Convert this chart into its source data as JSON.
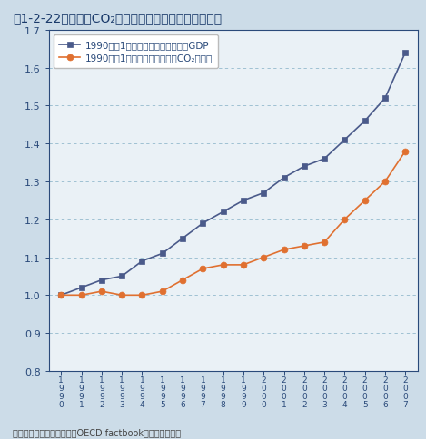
{
  "years": [
    1990,
    1991,
    1992,
    1993,
    1994,
    1995,
    1996,
    1997,
    1998,
    1999,
    2000,
    2001,
    2002,
    2003,
    2004,
    2005,
    2006,
    2007
  ],
  "gdp_vals": [
    1.0,
    1.02,
    1.04,
    1.05,
    1.09,
    1.11,
    1.15,
    1.19,
    1.22,
    1.25,
    1.27,
    1.31,
    1.34,
    1.36,
    1.41,
    1.46,
    1.52,
    1.64
  ],
  "co2_vals": [
    1.0,
    1.0,
    1.01,
    1.0,
    1.0,
    1.01,
    1.04,
    1.07,
    1.08,
    1.08,
    1.1,
    1.12,
    1.13,
    1.14,
    1.2,
    1.25,
    1.3,
    1.38
  ],
  "title": "囱1-2-22　経済とCO₂排出量の相対的デカップリング",
  "legend_gdp": "1990年を1としたときの各年の実質GDP",
  "legend_co2": "1990年を1としたときの各年のCO₂排出量",
  "source": "資料：国連統計部資料及びOECD factbookより環境省作成",
  "ylim": [
    0.8,
    1.7
  ],
  "yticks": [
    0.8,
    0.9,
    1.0,
    1.1,
    1.2,
    1.3,
    1.4,
    1.5,
    1.6,
    1.7
  ],
  "gdp_color": "#4a5a8a",
  "co2_color": "#e07030",
  "fig_bg_color": "#ccdce8",
  "plot_bg_color": "#eaf1f6",
  "grid_color": "#8ab4c8",
  "title_color": "#1a3a6a",
  "axis_color": "#2a4a7a",
  "tick_color": "#2a4a7a",
  "source_color": "#444444",
  "legend_border_color": "#bbbbbb"
}
